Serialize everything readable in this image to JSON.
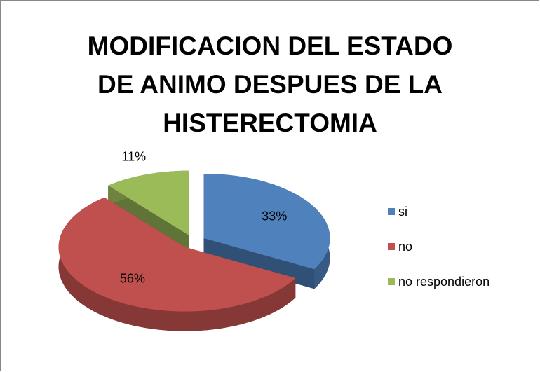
{
  "chart_data": {
    "type": "pie",
    "title": "MODIFICACION DEL ESTADO DE ANIMO DESPUES DE LA HISTERECTOMIA",
    "categories": [
      "si",
      "no",
      "no respondieron"
    ],
    "values": [
      33,
      56,
      11
    ],
    "value_labels": [
      "33%",
      "56%",
      "11%"
    ],
    "colors": [
      "#4f81bd",
      "#c0504d",
      "#9bbb59"
    ],
    "legend": "right"
  }
}
